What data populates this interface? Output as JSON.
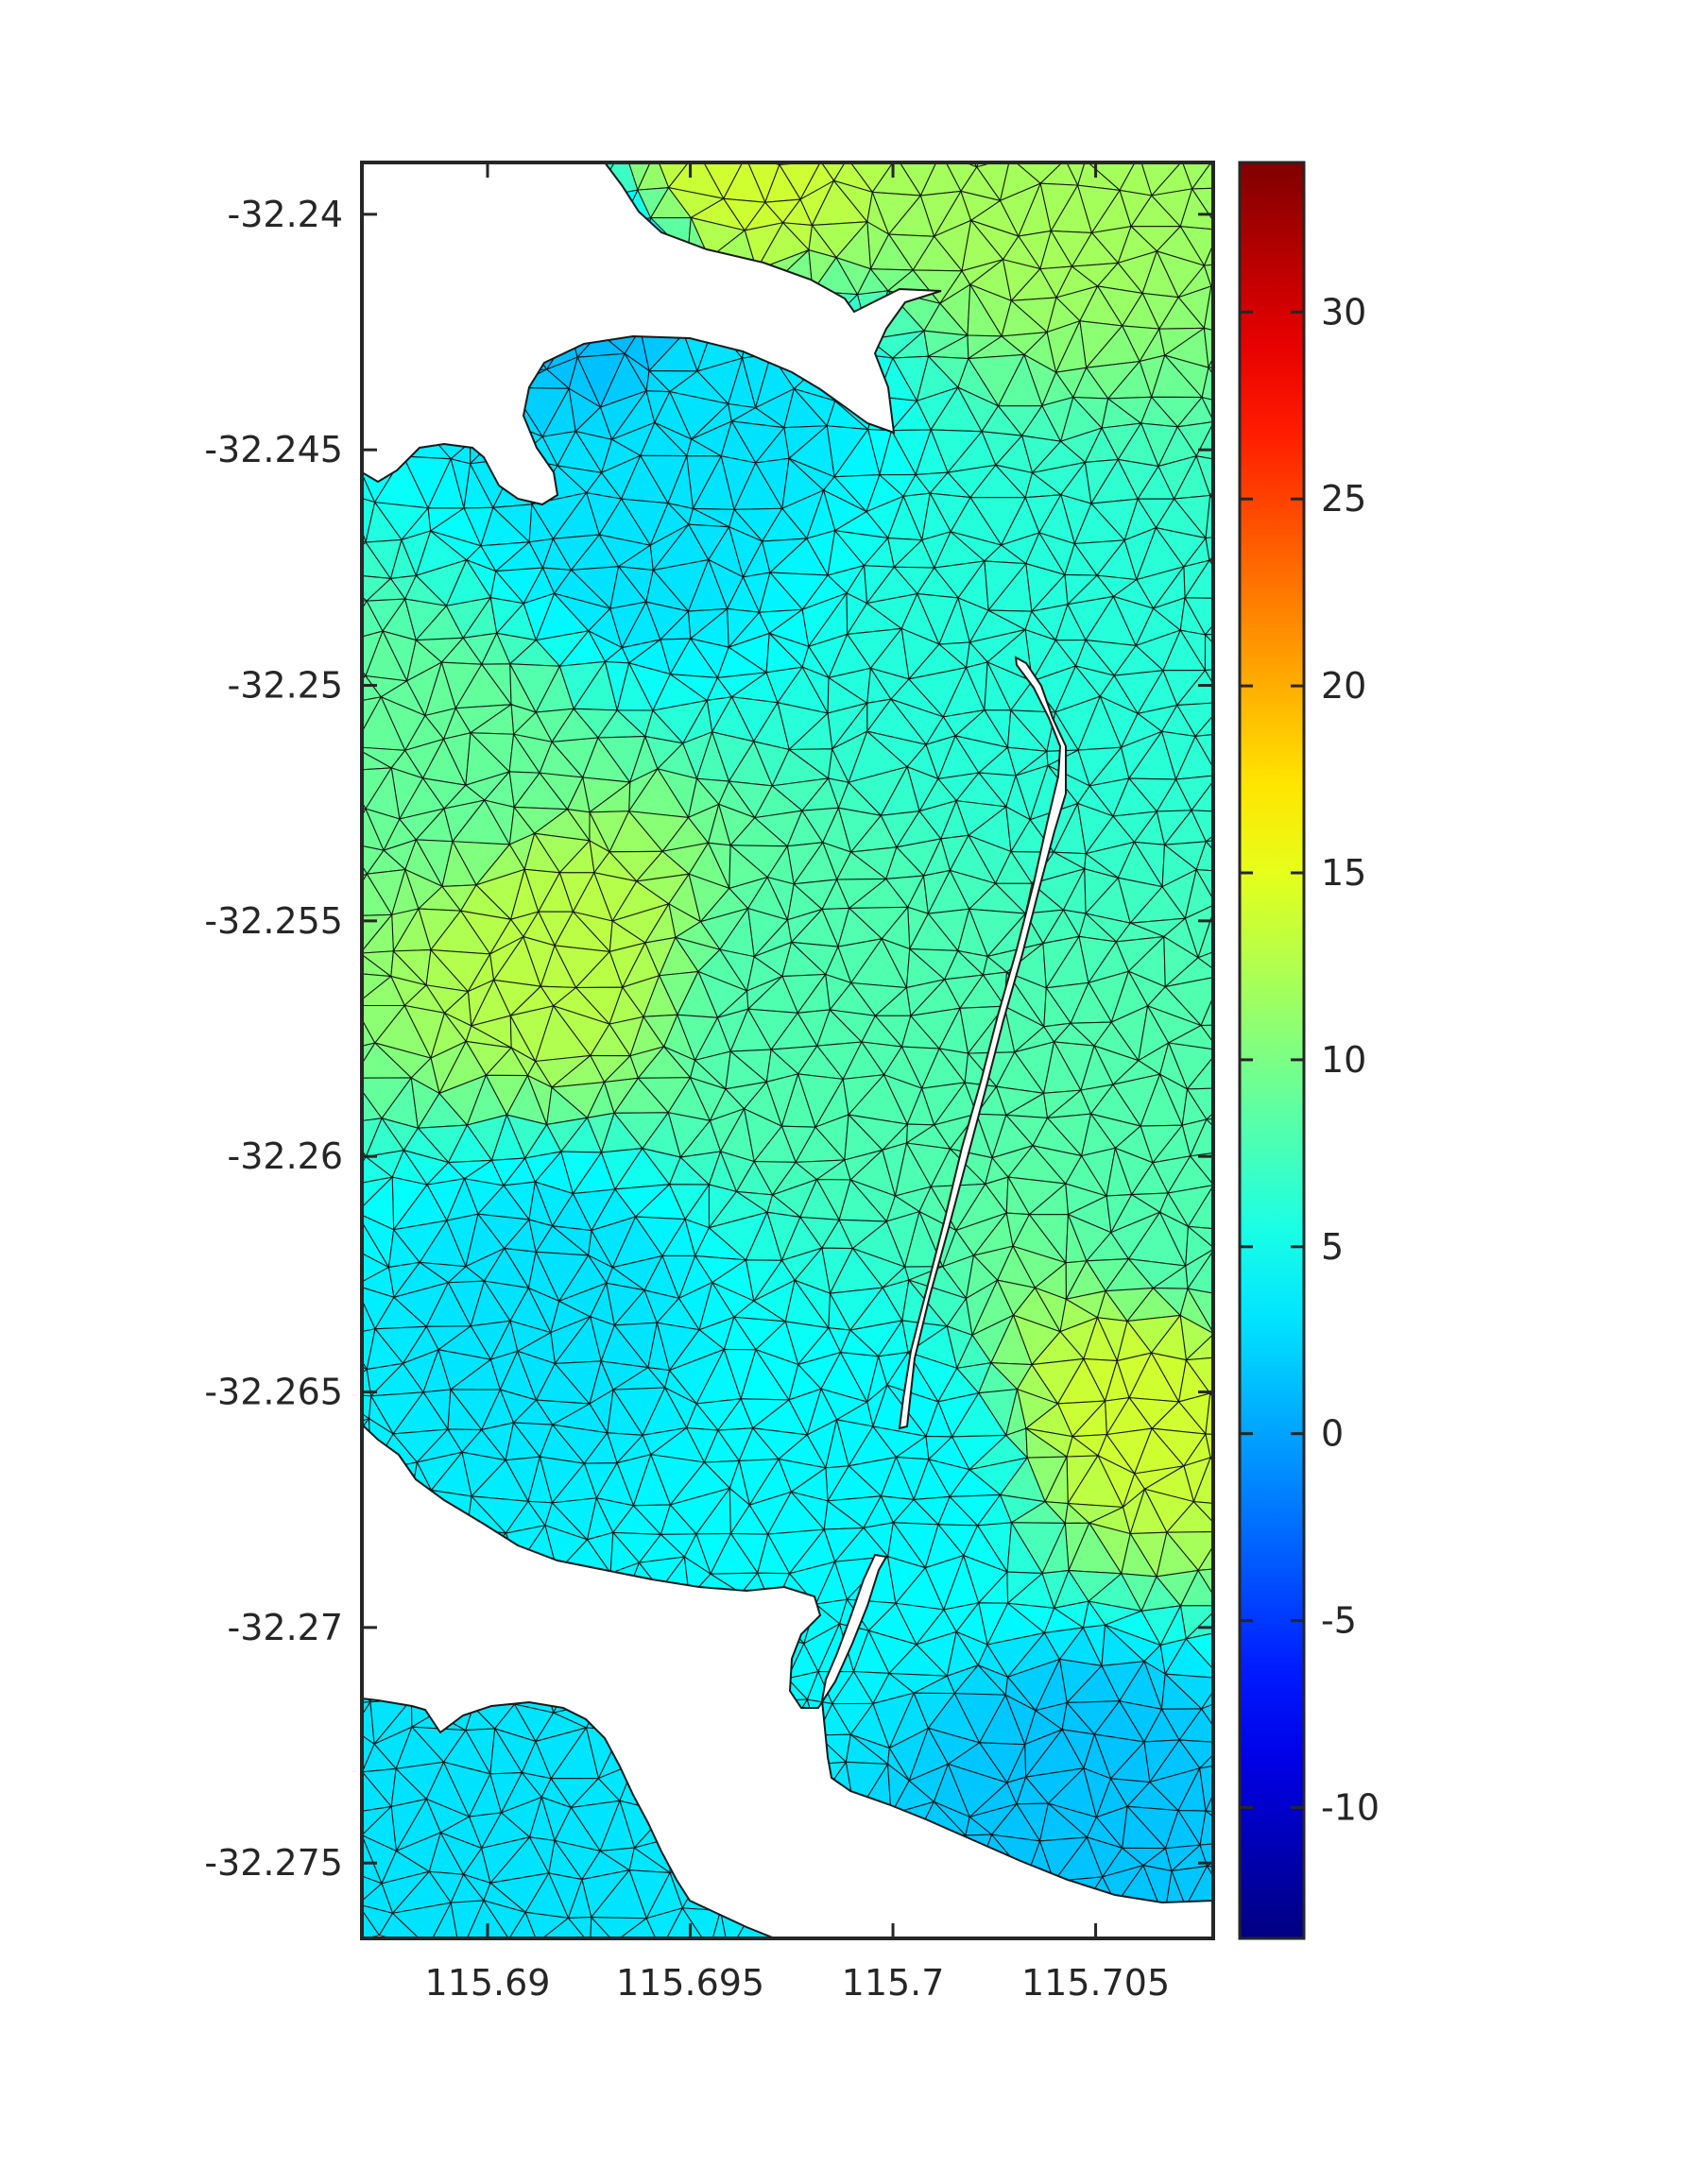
{
  "chart_data": {
    "type": "heatmap",
    "title": "",
    "xlabel": "",
    "ylabel": "",
    "xlim": [
      115.6869,
      115.7079
    ],
    "ylim": [
      -32.2766,
      -32.2389
    ],
    "x_ticks": [
      "115.69",
      "115.695",
      "115.7",
      "115.705"
    ],
    "x_tick_values": [
      115.69,
      115.695,
      115.7,
      115.705
    ],
    "y_ticks": [
      "-32.24",
      "-32.245",
      "-32.25",
      "-32.255",
      "-32.26",
      "-32.265",
      "-32.27",
      "-32.275"
    ],
    "y_tick_values": [
      -32.24,
      -32.245,
      -32.25,
      -32.255,
      -32.26,
      -32.265,
      -32.27,
      -32.275
    ],
    "grid": true,
    "colorbar": {
      "colormap": "jet",
      "range": [
        -13.5,
        34
      ],
      "ticks": [
        "-10",
        "-5",
        "0",
        "5",
        "10",
        "15",
        "20",
        "25",
        "30"
      ],
      "tick_values": [
        -10,
        -5,
        0,
        5,
        10,
        15,
        20,
        25,
        30
      ]
    },
    "mesh": "triangular unstructured mesh with black edges",
    "field_hotspots": [
      {
        "x": 115.6918,
        "y": -32.2555,
        "value": 13
      },
      {
        "x": 115.6894,
        "y": -32.2515,
        "value": 9
      },
      {
        "x": 115.6975,
        "y": -32.2568,
        "value": 8
      },
      {
        "x": 115.7062,
        "y": -32.2652,
        "value": 14
      },
      {
        "x": 115.7072,
        "y": -32.2615,
        "value": 8
      },
      {
        "x": 115.6963,
        "y": -32.2392,
        "value": 14
      },
      {
        "x": 115.7035,
        "y": -32.2392,
        "value": 12
      },
      {
        "x": 115.7028,
        "y": -32.249,
        "value": 6
      },
      {
        "x": 115.6935,
        "y": -32.247,
        "value": 3
      },
      {
        "x": 115.6915,
        "y": -32.263,
        "value": 3
      },
      {
        "x": 115.7,
        "y": -32.2668,
        "value": 4
      },
      {
        "x": 115.7048,
        "y": -32.2735,
        "value": 1.5
      },
      {
        "x": 115.689,
        "y": -32.2745,
        "value": 3
      },
      {
        "x": 115.693,
        "y": -32.2418,
        "value": 1
      },
      {
        "x": 115.696,
        "y": -32.244,
        "value": 3
      }
    ],
    "field_background": 5
  }
}
